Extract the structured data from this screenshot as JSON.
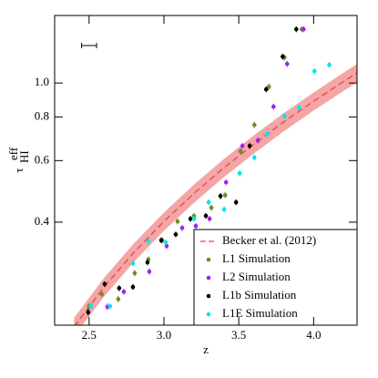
{
  "chart_data": {
    "type": "scatter",
    "xlabel": "z",
    "ylabel": "τ",
    "ylabel_sup": "eff",
    "ylabel_sub": "HI",
    "xlim": [
      2.27,
      4.29
    ],
    "ylim": [
      0.203,
      1.56
    ],
    "log_y": true,
    "legend": "lower right",
    "xticks": [
      2.5,
      {
        "value": 3,
        "label": "3.0"
      },
      3.5,
      {
        "value": 4,
        "label": "4.0"
      }
    ],
    "yticks": [
      0.4,
      0.6,
      0.8,
      {
        "value": 1,
        "label": "1.0"
      }
    ],
    "resolution_bar": {
      "x": [
        2.45,
        2.55
      ],
      "y": 1.28
    },
    "fit": {
      "name": "Becker et al. (2012)",
      "color": "#e04848",
      "band_color": "#f5a5a5",
      "x": [
        2.4,
        2.6,
        2.8,
        3.0,
        3.2,
        3.4,
        3.6,
        3.8,
        4.0,
        4.2,
        4.3
      ],
      "values": [
        0.201,
        0.261,
        0.328,
        0.402,
        0.483,
        0.572,
        0.668,
        0.774,
        0.887,
        1.01,
        1.075
      ],
      "lower": [
        0.189,
        0.245,
        0.308,
        0.378,
        0.454,
        0.538,
        0.628,
        0.728,
        0.834,
        0.949,
        1.01
      ],
      "upper": [
        0.213,
        0.277,
        0.348,
        0.426,
        0.512,
        0.606,
        0.708,
        0.82,
        0.94,
        1.071,
        1.14
      ]
    },
    "series": [
      {
        "name": "L1 Simulation",
        "color": "#6b8e23",
        "x": [
          2.5,
          2.585,
          2.695,
          2.805,
          2.896,
          2.988,
          3.091,
          3.201,
          3.317,
          3.409,
          3.512,
          3.604,
          3.701,
          3.805,
          3.921
        ],
        "values": [
          0.23,
          0.249,
          0.241,
          0.286,
          0.313,
          0.355,
          0.402,
          0.417,
          0.44,
          0.478,
          0.638,
          0.759,
          0.976,
          1.183,
          1.425
        ],
        "errors": [
          0.005,
          0.005,
          0.005,
          0.006,
          0.006,
          0.007,
          0.008,
          0.008,
          0.009,
          0.01,
          0.013,
          0.016,
          0.02,
          0.024,
          0.028
        ]
      },
      {
        "name": "L2 Simulation",
        "color": "#a020f0",
        "x": [
          2.622,
          2.732,
          2.902,
          3.018,
          3.122,
          3.213,
          3.305,
          3.415,
          3.524,
          3.628,
          3.732,
          3.823,
          3.933
        ],
        "values": [
          0.229,
          0.253,
          0.289,
          0.342,
          0.385,
          0.39,
          0.409,
          0.52,
          0.661,
          0.685,
          0.856,
          1.134,
          1.425
        ],
        "errors": [
          0.005,
          0.005,
          0.006,
          0.007,
          0.008,
          0.008,
          0.008,
          0.01,
          0.013,
          0.014,
          0.017,
          0.023,
          0.028
        ]
      },
      {
        "name": "L1b Simulation",
        "color": "#000000",
        "x": [
          2.494,
          2.604,
          2.701,
          2.793,
          2.89,
          2.982,
          3.079,
          3.177,
          3.28,
          3.378,
          3.482,
          3.573,
          3.683,
          3.793,
          3.884
        ],
        "values": [
          0.221,
          0.266,
          0.259,
          0.261,
          0.307,
          0.355,
          0.369,
          0.409,
          0.417,
          0.475,
          0.456,
          0.661,
          0.959,
          1.19,
          1.425
        ],
        "errors": [
          0.005,
          0.005,
          0.005,
          0.005,
          0.006,
          0.007,
          0.007,
          0.008,
          0.008,
          0.01,
          0.009,
          0.013,
          0.019,
          0.024,
          0.028
        ]
      },
      {
        "name": "L1E Simulation",
        "color": "#00e5ee",
        "x": [
          2.512,
          2.64,
          2.793,
          2.896,
          3.012,
          3.201,
          3.299,
          3.402,
          3.506,
          3.604,
          3.689,
          3.805,
          3.902,
          4.006,
          4.104
        ],
        "values": [
          0.23,
          0.23,
          0.305,
          0.353,
          0.35,
          0.409,
          0.456,
          0.435,
          0.552,
          0.612,
          0.715,
          0.806,
          0.851,
          1.081,
          1.127
        ],
        "errors": [
          0.005,
          0.005,
          0.006,
          0.007,
          0.007,
          0.008,
          0.009,
          0.009,
          0.011,
          0.012,
          0.014,
          0.016,
          0.017,
          0.022,
          0.023
        ]
      }
    ]
  }
}
